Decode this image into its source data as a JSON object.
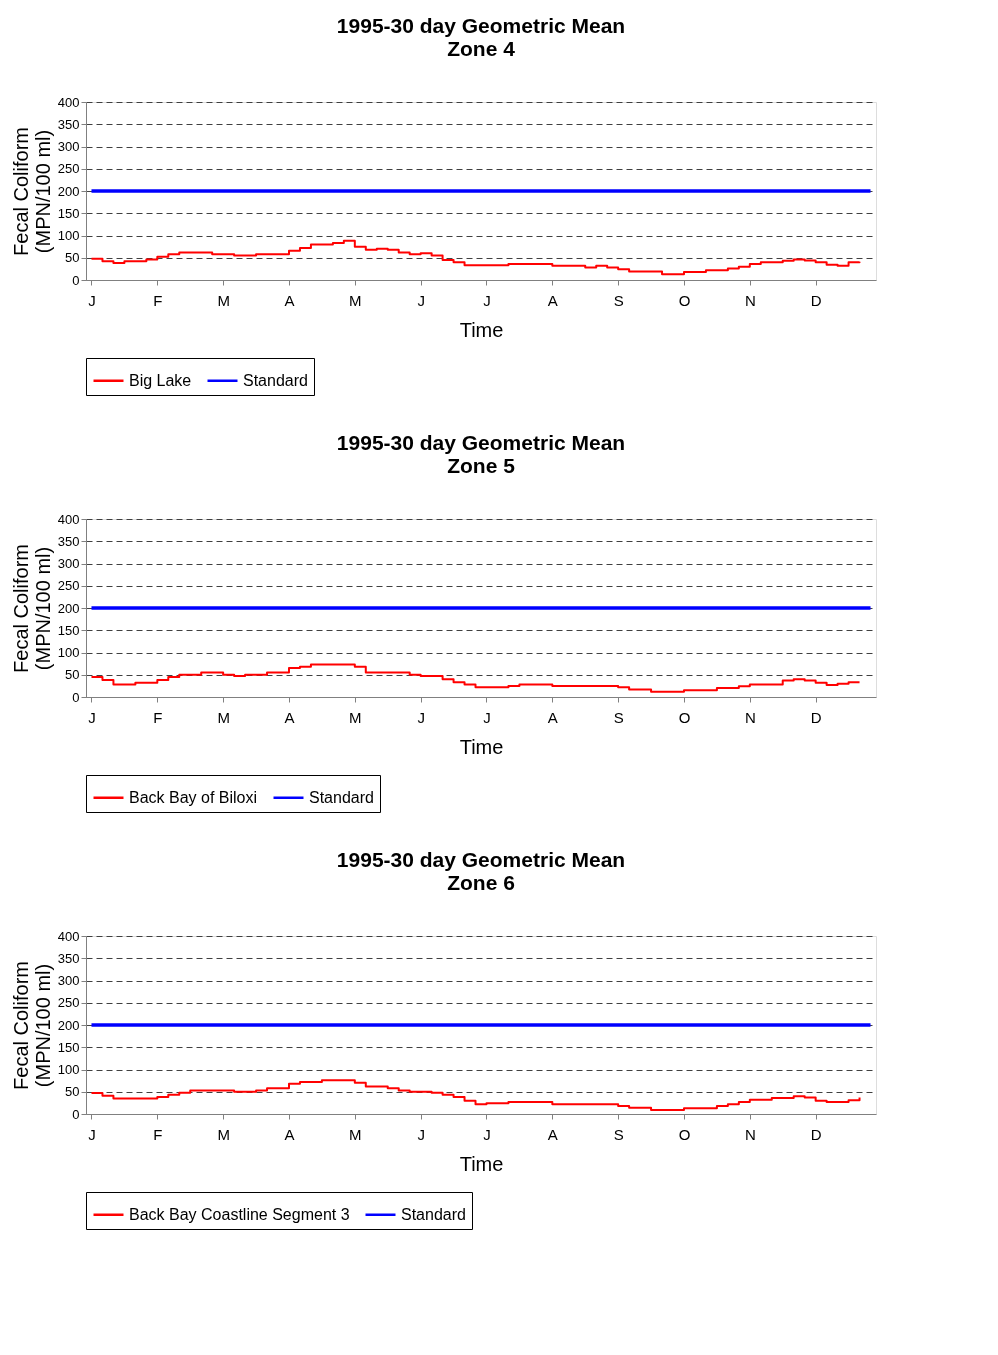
{
  "chart_data": [
    {
      "type": "step",
      "title": "1995-30 day Geometric Mean\nZone 4",
      "xlabel": "Time",
      "ylabel": "Fecal Coliform\n(MPN/100 ml)",
      "categories": [
        "J",
        null,
        null,
        null,
        null,
        null,
        "F",
        null,
        null,
        null,
        null,
        null,
        "M",
        null,
        null,
        null,
        null,
        null,
        "A",
        null,
        null,
        null,
        null,
        null,
        "M",
        null,
        null,
        null,
        null,
        null,
        "J",
        null,
        null,
        null,
        null,
        null,
        "J",
        null,
        null,
        null,
        null,
        null,
        "A",
        null,
        null,
        null,
        null,
        null,
        "S",
        null,
        null,
        null,
        null,
        null,
        "O",
        null,
        null,
        null,
        null,
        null,
        "N",
        null,
        null,
        null,
        null,
        null,
        "D",
        null,
        null,
        null,
        null,
        null
      ],
      "ylim": [
        0,
        400
      ],
      "yticks": [
        0,
        50,
        100,
        150,
        200,
        250,
        300,
        350,
        400
      ],
      "grid": "y",
      "legend": "bottom",
      "series": [
        {
          "name": "Big Lake",
          "color": "#ff0000",
          "values": [
            48,
            42,
            38,
            42,
            42,
            46,
            52,
            58,
            62,
            62,
            62,
            58,
            58,
            55,
            55,
            58,
            58,
            58,
            66,
            72,
            80,
            80,
            83,
            88,
            75,
            68,
            70,
            68,
            62,
            58,
            60,
            55,
            45,
            40,
            33,
            33,
            33,
            33,
            36,
            36,
            36,
            36,
            32,
            32,
            32,
            28,
            32,
            28,
            24,
            19,
            19,
            19,
            13,
            13,
            18,
            18,
            22,
            22,
            26,
            30,
            36,
            40,
            40,
            43,
            46,
            44,
            40,
            34,
            32,
            40,
            41,
            null
          ]
        },
        {
          "name": "Standard",
          "color": "#0000ff",
          "type": "line",
          "values": [
            200,
            200,
            200,
            200,
            200,
            200,
            200,
            200,
            200,
            200,
            200,
            200,
            200,
            200,
            200,
            200,
            200,
            200,
            200,
            200,
            200,
            200,
            200,
            200,
            200,
            200,
            200,
            200,
            200,
            200,
            200,
            200,
            200,
            200,
            200,
            200,
            200,
            200,
            200,
            200,
            200,
            200,
            200,
            200,
            200,
            200,
            200,
            200,
            200,
            200,
            200,
            200,
            200,
            200,
            200,
            200,
            200,
            200,
            200,
            200,
            200,
            200,
            200,
            200,
            200,
            200,
            200,
            200,
            200,
            200,
            200,
            200
          ]
        }
      ]
    },
    {
      "type": "step",
      "title": "1995-30 day Geometric Mean\nZone 5",
      "xlabel": "Time",
      "ylabel": "Fecal Coliform\n(MPN/100 ml)",
      "categories": [
        "J",
        null,
        null,
        null,
        null,
        null,
        "F",
        null,
        null,
        null,
        null,
        null,
        "M",
        null,
        null,
        null,
        null,
        null,
        "A",
        null,
        null,
        null,
        null,
        null,
        "M",
        null,
        null,
        null,
        null,
        null,
        "J",
        null,
        null,
        null,
        null,
        null,
        "J",
        null,
        null,
        null,
        null,
        null,
        "A",
        null,
        null,
        null,
        null,
        null,
        "S",
        null,
        null,
        null,
        null,
        null,
        "O",
        null,
        null,
        null,
        null,
        null,
        "N",
        null,
        null,
        null,
        null,
        null,
        "D",
        null,
        null,
        null,
        null,
        null
      ],
      "ylim": [
        0,
        400
      ],
      "yticks": [
        0,
        50,
        100,
        150,
        200,
        250,
        300,
        350,
        400
      ],
      "grid": "y",
      "legend": "bottom",
      "series": [
        {
          "name": "Back Bay of Biloxi",
          "color": "#ff0000",
          "values": [
            45,
            38,
            28,
            28,
            32,
            32,
            38,
            45,
            50,
            50,
            55,
            55,
            50,
            47,
            50,
            50,
            55,
            55,
            65,
            68,
            73,
            73,
            73,
            73,
            68,
            55,
            55,
            55,
            55,
            50,
            47,
            47,
            40,
            33,
            28,
            22,
            22,
            22,
            25,
            28,
            28,
            28,
            25,
            25,
            25,
            25,
            25,
            25,
            22,
            17,
            17,
            12,
            12,
            12,
            15,
            15,
            15,
            20,
            20,
            24,
            28,
            28,
            28,
            37,
            40,
            37,
            32,
            27,
            30,
            33,
            33,
            null
          ]
        },
        {
          "name": "Standard",
          "color": "#0000ff",
          "type": "line",
          "values": [
            200,
            200,
            200,
            200,
            200,
            200,
            200,
            200,
            200,
            200,
            200,
            200,
            200,
            200,
            200,
            200,
            200,
            200,
            200,
            200,
            200,
            200,
            200,
            200,
            200,
            200,
            200,
            200,
            200,
            200,
            200,
            200,
            200,
            200,
            200,
            200,
            200,
            200,
            200,
            200,
            200,
            200,
            200,
            200,
            200,
            200,
            200,
            200,
            200,
            200,
            200,
            200,
            200,
            200,
            200,
            200,
            200,
            200,
            200,
            200,
            200,
            200,
            200,
            200,
            200,
            200,
            200,
            200,
            200,
            200,
            200,
            200
          ]
        }
      ]
    },
    {
      "type": "step",
      "title": "1995-30 day Geometric Mean\nZone 6",
      "xlabel": "Time",
      "ylabel": "Fecal Coliform\n(MPN/100 ml)",
      "categories": [
        "J",
        null,
        null,
        null,
        null,
        null,
        "F",
        null,
        null,
        null,
        null,
        null,
        "M",
        null,
        null,
        null,
        null,
        null,
        "A",
        null,
        null,
        null,
        null,
        null,
        "M",
        null,
        null,
        null,
        null,
        null,
        "J",
        null,
        null,
        null,
        null,
        null,
        "J",
        null,
        null,
        null,
        null,
        null,
        "A",
        null,
        null,
        null,
        null,
        null,
        "S",
        null,
        null,
        null,
        null,
        null,
        "O",
        null,
        null,
        null,
        null,
        null,
        "N",
        null,
        null,
        null,
        null,
        null,
        "D",
        null,
        null,
        null,
        null,
        null
      ],
      "ylim": [
        0,
        400
      ],
      "yticks": [
        0,
        50,
        100,
        150,
        200,
        250,
        300,
        350,
        400
      ],
      "grid": "y",
      "legend": "bottom",
      "series": [
        {
          "name": "Back Bay Coastline Segment 3",
          "color": "#ff0000",
          "values": [
            47,
            41,
            35,
            35,
            35,
            35,
            38,
            43,
            48,
            53,
            53,
            53,
            53,
            50,
            50,
            53,
            58,
            58,
            68,
            72,
            72,
            76,
            76,
            76,
            70,
            62,
            62,
            58,
            53,
            50,
            50,
            48,
            43,
            38,
            30,
            22,
            24,
            24,
            27,
            27,
            27,
            27,
            22,
            22,
            22,
            22,
            22,
            22,
            18,
            14,
            14,
            9,
            9,
            9,
            13,
            13,
            13,
            18,
            22,
            27,
            32,
            32,
            36,
            36,
            40,
            37,
            30,
            27,
            27,
            31,
            37,
            null
          ]
        },
        {
          "name": "Standard",
          "color": "#0000ff",
          "type": "line",
          "values": [
            200,
            200,
            200,
            200,
            200,
            200,
            200,
            200,
            200,
            200,
            200,
            200,
            200,
            200,
            200,
            200,
            200,
            200,
            200,
            200,
            200,
            200,
            200,
            200,
            200,
            200,
            200,
            200,
            200,
            200,
            200,
            200,
            200,
            200,
            200,
            200,
            200,
            200,
            200,
            200,
            200,
            200,
            200,
            200,
            200,
            200,
            200,
            200,
            200,
            200,
            200,
            200,
            200,
            200,
            200,
            200,
            200,
            200,
            200,
            200,
            200,
            200,
            200,
            200,
            200,
            200,
            200,
            200,
            200,
            200,
            200,
            200
          ]
        }
      ]
    }
  ]
}
